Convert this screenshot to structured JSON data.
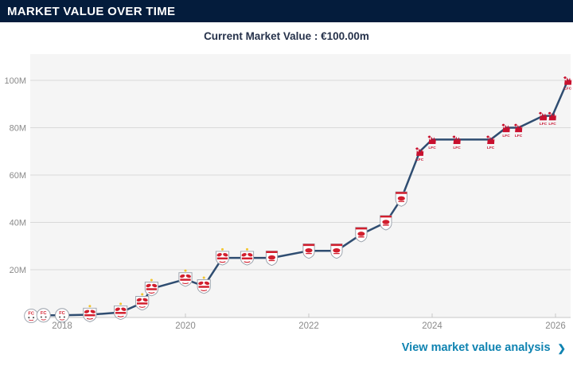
{
  "panel": {
    "title": "MARKET VALUE OVER TIME",
    "subtitle": "Current Market Value : €100.00m",
    "footer_link": "View market value analysis",
    "footer_chevron": "❯"
  },
  "colors": {
    "header_bg": "#041c3c",
    "header_text": "#ffffff",
    "subtitle_text": "#26324b",
    "link": "#0f83b1",
    "line": "#2f4d71",
    "plot_bg": "#f5f5f5",
    "grid": "#d9d9d9",
    "axis_line": "#c6c6c6",
    "axis_text": "#8a8a8a",
    "crest_red": "#d21f2e",
    "liverpool_red": "#c8102e",
    "sun_yellow": "#f2c52e"
  },
  "chart_data": {
    "type": "line",
    "title": "Market value over time",
    "xlabel": "",
    "ylabel": "",
    "grid": true,
    "legend": false,
    "x_ticks": [
      2018,
      2020,
      2022,
      2024,
      2026
    ],
    "y_ticks": [
      {
        "label": "20M",
        "value": 20
      },
      {
        "label": "40M",
        "value": 40
      },
      {
        "label": "60M",
        "value": 60
      },
      {
        "label": "80M",
        "value": 80
      },
      {
        "label": "100M",
        "value": 100
      }
    ],
    "x_range": [
      2017.484,
      2026.245
    ],
    "y_range": [
      0,
      111.1
    ],
    "marker_icons": {
      "liefering": "FC Liefering crest",
      "salzburg": "Red Bull Salzburg crest",
      "leipzig": "RB Leipzig crest",
      "liverpool": "Liverpool FC liver bird"
    },
    "points": [
      {
        "x": 2017.5,
        "y": 0.5,
        "club": "liefering"
      },
      {
        "x": 2017.7,
        "y": 0.75,
        "club": "liefering"
      },
      {
        "x": 2018.0,
        "y": 0.75,
        "club": "liefering"
      },
      {
        "x": 2018.45,
        "y": 1,
        "club": "salzburg"
      },
      {
        "x": 2018.95,
        "y": 2,
        "club": "salzburg"
      },
      {
        "x": 2019.3,
        "y": 6,
        "club": "salzburg"
      },
      {
        "x": 2019.45,
        "y": 12,
        "club": "salzburg"
      },
      {
        "x": 2020.0,
        "y": 16,
        "club": "salzburg"
      },
      {
        "x": 2020.3,
        "y": 13,
        "club": "salzburg"
      },
      {
        "x": 2020.6,
        "y": 25,
        "club": "salzburg"
      },
      {
        "x": 2021.0,
        "y": 25,
        "club": "salzburg"
      },
      {
        "x": 2021.4,
        "y": 25,
        "club": "leipzig"
      },
      {
        "x": 2022.0,
        "y": 28,
        "club": "leipzig"
      },
      {
        "x": 2022.45,
        "y": 28,
        "club": "leipzig"
      },
      {
        "x": 2022.85,
        "y": 35,
        "club": "leipzig"
      },
      {
        "x": 2023.25,
        "y": 40,
        "club": "leipzig"
      },
      {
        "x": 2023.5,
        "y": 50,
        "club": "leipzig"
      },
      {
        "x": 2023.8,
        "y": 70,
        "club": "liverpool"
      },
      {
        "x": 2024.0,
        "y": 75,
        "club": "liverpool"
      },
      {
        "x": 2024.4,
        "y": 75,
        "club": "liverpool"
      },
      {
        "x": 2024.95,
        "y": 75,
        "club": "liverpool"
      },
      {
        "x": 2025.2,
        "y": 80,
        "club": "liverpool"
      },
      {
        "x": 2025.4,
        "y": 80,
        "club": "liverpool"
      },
      {
        "x": 2025.8,
        "y": 85,
        "club": "liverpool"
      },
      {
        "x": 2025.95,
        "y": 85,
        "club": "liverpool"
      },
      {
        "x": 2026.2,
        "y": 100,
        "club": "liverpool"
      }
    ]
  }
}
